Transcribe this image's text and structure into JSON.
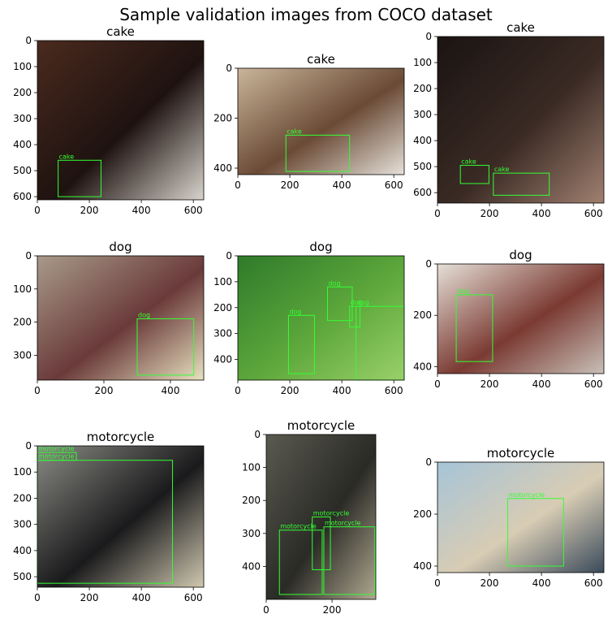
{
  "figure": {
    "title": "Sample validation images from COCO dataset"
  },
  "colors": {
    "box": "#33ff33",
    "axis": "#000000"
  },
  "panels": [
    {
      "title": "cake",
      "width": 640,
      "height": 612,
      "xticks": [
        0,
        200,
        400,
        600
      ],
      "yticks": [
        0,
        100,
        200,
        300,
        400,
        500,
        600
      ],
      "palette": [
        "#4a2a1e",
        "#1e1210",
        "#d8d4cc"
      ],
      "boxes": [
        {
          "label": "cake",
          "x": 80,
          "y": 460,
          "w": 165,
          "h": 140
        }
      ]
    },
    {
      "title": "cake",
      "width": 640,
      "height": 426,
      "xticks": [
        0,
        200,
        400,
        600
      ],
      "yticks": [
        0,
        200,
        400
      ],
      "palette": [
        "#c9b59a",
        "#6a4a35",
        "#e6e1da"
      ],
      "boxes": [
        {
          "label": "cake",
          "x": 185,
          "y": 268,
          "w": 245,
          "h": 145
        }
      ]
    },
    {
      "title": "cake",
      "width": 640,
      "height": 640,
      "xticks": [
        0,
        200,
        400,
        600
      ],
      "yticks": [
        0,
        100,
        200,
        300,
        400,
        500,
        600
      ],
      "palette": [
        "#1a1412",
        "#3a2a24",
        "#a08070"
      ],
      "boxes": [
        {
          "label": "cake",
          "x": 88,
          "y": 495,
          "w": 110,
          "h": 70
        },
        {
          "label": "cake",
          "x": 215,
          "y": 525,
          "w": 215,
          "h": 85
        }
      ]
    },
    {
      "title": "dog",
      "width": 500,
      "height": 375,
      "xticks": [
        0,
        200,
        400
      ],
      "yticks": [
        0,
        100,
        200,
        300
      ],
      "palette": [
        "#a89a8a",
        "#6a3a3a",
        "#e8e2c0"
      ],
      "boxes": [
        {
          "label": "dog",
          "x": 300,
          "y": 190,
          "w": 170,
          "h": 170
        }
      ]
    },
    {
      "title": "dog",
      "width": 640,
      "height": 480,
      "xticks": [
        0,
        200,
        400,
        600
      ],
      "yticks": [
        0,
        100,
        200,
        300,
        400
      ],
      "palette": [
        "#2f7a2a",
        "#5ea83c",
        "#9ad06a"
      ],
      "boxes": [
        {
          "label": "dog",
          "x": 345,
          "y": 120,
          "w": 95,
          "h": 130
        },
        {
          "label": "dog",
          "x": 195,
          "y": 230,
          "w": 100,
          "h": 225
        },
        {
          "label": "dog",
          "x": 455,
          "y": 195,
          "w": 185,
          "h": 285
        },
        {
          "label": "dog",
          "x": 430,
          "y": 195,
          "w": 40,
          "h": 80
        }
      ]
    },
    {
      "title": "dog",
      "width": 640,
      "height": 427,
      "xticks": [
        0,
        200,
        400,
        600
      ],
      "yticks": [
        0,
        200,
        400
      ],
      "palette": [
        "#e6e0d8",
        "#7a3a32",
        "#c8c0b8"
      ],
      "boxes": [
        {
          "label": "dog",
          "x": 72,
          "y": 120,
          "w": 140,
          "h": 260
        }
      ]
    },
    {
      "title": "motorcycle",
      "width": 640,
      "height": 540,
      "xticks": [
        0,
        200,
        400,
        600
      ],
      "yticks": [
        0,
        100,
        200,
        300,
        400,
        500
      ],
      "palette": [
        "#8a8a84",
        "#1a1a1c",
        "#d0c8b0"
      ],
      "boxes": [
        {
          "label": "motorcycle",
          "x": 0,
          "y": 55,
          "w": 520,
          "h": 470
        },
        {
          "label": "motorcycle",
          "x": 0,
          "y": 25,
          "w": 150,
          "h": 30
        }
      ]
    },
    {
      "title": "motorcycle",
      "width": 333,
      "height": 500,
      "xticks": [
        0,
        200
      ],
      "yticks": [
        0,
        100,
        200,
        300,
        400
      ],
      "palette": [
        "#5a5a50",
        "#2a2a26",
        "#b0a890"
      ],
      "boxes": [
        {
          "label": "motorcycle",
          "x": 40,
          "y": 290,
          "w": 130,
          "h": 195
        },
        {
          "label": "motorcycle",
          "x": 140,
          "y": 250,
          "w": 55,
          "h": 160
        },
        {
          "label": "motorcycle",
          "x": 175,
          "y": 280,
          "w": 155,
          "h": 205
        }
      ]
    },
    {
      "title": "motorcycle",
      "width": 640,
      "height": 425,
      "xticks": [
        0,
        200,
        400,
        600
      ],
      "yticks": [
        0,
        200,
        400
      ],
      "palette": [
        "#a6c4d8",
        "#d8ccb4",
        "#3a4a5a"
      ],
      "boxes": [
        {
          "label": "motorcycle",
          "x": 270,
          "y": 140,
          "w": 215,
          "h": 260
        }
      ]
    }
  ]
}
